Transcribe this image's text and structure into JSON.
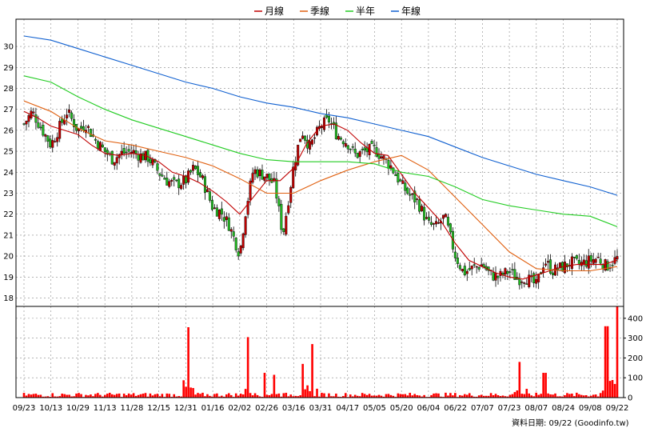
{
  "legend": [
    {
      "label": "月線",
      "color": "#c00000"
    },
    {
      "label": "季線",
      "color": "#e06010"
    },
    {
      "label": "半年",
      "color": "#22cc22"
    },
    {
      "label": "年線",
      "color": "#1060d0"
    }
  ],
  "footer": "資料日期: 09/22 (Goodinfo.tw)",
  "chart_data": {
    "type": "candlestick",
    "price_axis": {
      "ylim": [
        17.6,
        31.3
      ],
      "ticks": [
        18,
        19,
        20,
        21,
        22,
        23,
        24,
        25,
        26,
        27,
        28,
        29,
        30
      ]
    },
    "volume_axis": {
      "ylim": [
        0,
        460
      ],
      "ticks": [
        0,
        100,
        200,
        300,
        400
      ]
    },
    "x_labels": [
      "09/23",
      "10/13",
      "10/29",
      "11/13",
      "11/28",
      "12/15",
      "12/31",
      "01/16",
      "02/02",
      "02/26",
      "03/16",
      "03/31",
      "04/17",
      "05/05",
      "05/20",
      "06/04",
      "06/22",
      "07/07",
      "07/23",
      "08/07",
      "08/24",
      "09/08",
      "09/22"
    ],
    "grid": true,
    "candle_colors": {
      "up": "#c00000",
      "down": "#22bb22"
    },
    "volume_color": "#ff0000",
    "moving_averages": {
      "月線": [
        [
          0,
          26.9
        ],
        [
          0.5,
          26.6
        ],
        [
          1,
          26.2
        ],
        [
          1.5,
          26.0
        ],
        [
          2,
          25.8
        ],
        [
          2.5,
          25.3
        ],
        [
          3,
          24.9
        ],
        [
          3.5,
          24.8
        ],
        [
          4,
          24.9
        ],
        [
          4.5,
          24.8
        ],
        [
          5,
          24.5
        ],
        [
          5.5,
          24.0
        ],
        [
          6,
          23.8
        ],
        [
          6.5,
          23.5
        ],
        [
          7,
          23.1
        ],
        [
          7.5,
          22.6
        ],
        [
          8,
          22.0
        ],
        [
          8.5,
          22.8
        ],
        [
          9,
          23.6
        ],
        [
          9.5,
          23.6
        ],
        [
          10,
          24.2
        ],
        [
          10.5,
          25.4
        ],
        [
          11,
          26.2
        ],
        [
          11.5,
          26.3
        ],
        [
          12,
          26.0
        ],
        [
          12.5,
          25.4
        ],
        [
          13,
          24.9
        ],
        [
          13.5,
          24.8
        ],
        [
          14,
          23.9
        ],
        [
          14.5,
          23.0
        ],
        [
          15,
          22.3
        ],
        [
          15.5,
          21.6
        ],
        [
          16,
          20.6
        ],
        [
          16.5,
          19.8
        ],
        [
          17,
          19.5
        ],
        [
          17.5,
          19.2
        ],
        [
          18,
          19.0
        ],
        [
          18.5,
          18.9
        ],
        [
          19,
          19.1
        ],
        [
          19.5,
          19.3
        ],
        [
          20,
          19.5
        ],
        [
          20.5,
          19.6
        ],
        [
          21,
          19.6
        ],
        [
          21.5,
          19.6
        ],
        [
          22,
          19.8
        ]
      ],
      "季線": [
        [
          0,
          27.4
        ],
        [
          1,
          26.9
        ],
        [
          2,
          26.1
        ],
        [
          3,
          25.5
        ],
        [
          4,
          25.3
        ],
        [
          5,
          25.0
        ],
        [
          6,
          24.7
        ],
        [
          7,
          24.3
        ],
        [
          8,
          23.7
        ],
        [
          9,
          23.0
        ],
        [
          10,
          23.0
        ],
        [
          11,
          23.6
        ],
        [
          12,
          24.1
        ],
        [
          13,
          24.5
        ],
        [
          14,
          24.8
        ],
        [
          15,
          24.1
        ],
        [
          16,
          22.8
        ],
        [
          17,
          21.5
        ],
        [
          18,
          20.2
        ],
        [
          19,
          19.4
        ],
        [
          20,
          19.3
        ],
        [
          21,
          19.3
        ],
        [
          22,
          19.5
        ]
      ],
      "半年": [
        [
          0,
          28.6
        ],
        [
          1,
          28.3
        ],
        [
          2,
          27.6
        ],
        [
          3,
          27.0
        ],
        [
          4,
          26.5
        ],
        [
          5,
          26.1
        ],
        [
          6,
          25.7
        ],
        [
          7,
          25.3
        ],
        [
          8,
          24.9
        ],
        [
          9,
          24.6
        ],
        [
          10,
          24.5
        ],
        [
          11,
          24.5
        ],
        [
          12,
          24.5
        ],
        [
          13,
          24.4
        ],
        [
          14,
          24.0
        ],
        [
          15,
          23.8
        ],
        [
          16,
          23.3
        ],
        [
          17,
          22.7
        ],
        [
          18,
          22.4
        ],
        [
          19,
          22.2
        ],
        [
          20,
          22.0
        ],
        [
          21,
          21.9
        ],
        [
          22,
          21.4
        ]
      ],
      "年線": [
        [
          0,
          30.5
        ],
        [
          1,
          30.3
        ],
        [
          2,
          29.9
        ],
        [
          3,
          29.5
        ],
        [
          4,
          29.1
        ],
        [
          5,
          28.7
        ],
        [
          6,
          28.3
        ],
        [
          7,
          28.0
        ],
        [
          8,
          27.6
        ],
        [
          9,
          27.3
        ],
        [
          10,
          27.1
        ],
        [
          11,
          26.8
        ],
        [
          12,
          26.6
        ],
        [
          13,
          26.3
        ],
        [
          14,
          26.0
        ],
        [
          15,
          25.7
        ],
        [
          16,
          25.2
        ],
        [
          17,
          24.7
        ],
        [
          18,
          24.3
        ],
        [
          19,
          23.9
        ],
        [
          20,
          23.6
        ],
        [
          21,
          23.3
        ],
        [
          22,
          22.9
        ]
      ]
    },
    "price_path": [
      [
        0,
        26.3
      ],
      [
        0.3,
        26.9
      ],
      [
        0.6,
        26.2
      ],
      [
        1,
        25.3
      ],
      [
        1.3,
        26.1
      ],
      [
        1.6,
        26.9
      ],
      [
        2,
        26.0
      ],
      [
        2.3,
        26.3
      ],
      [
        2.6,
        25.6
      ],
      [
        3,
        25.0
      ],
      [
        3.3,
        24.6
      ],
      [
        3.6,
        24.9
      ],
      [
        4,
        25.0
      ],
      [
        4.3,
        24.8
      ],
      [
        4.6,
        24.7
      ],
      [
        5,
        24.0
      ],
      [
        5.3,
        23.6
      ],
      [
        5.6,
        23.4
      ],
      [
        6,
        23.6
      ],
      [
        6.3,
        24.2
      ],
      [
        6.6,
        23.7
      ],
      [
        7,
        22.3
      ],
      [
        7.3,
        22.1
      ],
      [
        7.6,
        21.5
      ],
      [
        8,
        20.1
      ],
      [
        8.2,
        22.0
      ],
      [
        8.5,
        24.1
      ],
      [
        9,
        23.8
      ],
      [
        9.3,
        23.4
      ],
      [
        9.6,
        21.0
      ],
      [
        10,
        24.3
      ],
      [
        10.3,
        26.0
      ],
      [
        10.6,
        25.2
      ],
      [
        11,
        26.2
      ],
      [
        11.3,
        26.5
      ],
      [
        11.6,
        25.8
      ],
      [
        12,
        25.4
      ],
      [
        12.3,
        24.8
      ],
      [
        12.6,
        25.0
      ],
      [
        13,
        25.1
      ],
      [
        13.3,
        24.7
      ],
      [
        13.6,
        24.3
      ],
      [
        14,
        23.4
      ],
      [
        14.3,
        22.9
      ],
      [
        14.6,
        22.6
      ],
      [
        15,
        21.5
      ],
      [
        15.3,
        21.4
      ],
      [
        15.6,
        21.9
      ],
      [
        16,
        20.0
      ],
      [
        16.3,
        19.2
      ],
      [
        16.6,
        19.4
      ],
      [
        17,
        19.6
      ],
      [
        17.3,
        19.1
      ],
      [
        17.6,
        19.0
      ],
      [
        18,
        19.3
      ],
      [
        18.3,
        18.9
      ],
      [
        18.6,
        19.0
      ],
      [
        19,
        18.6
      ],
      [
        19.3,
        19.8
      ],
      [
        19.6,
        19.3
      ],
      [
        20,
        19.5
      ],
      [
        20.3,
        19.7
      ],
      [
        20.6,
        19.6
      ],
      [
        21,
        19.8
      ],
      [
        21.3,
        19.9
      ],
      [
        21.6,
        19.5
      ],
      [
        22,
        19.9
      ]
    ],
    "volume_spikes": [
      [
        6.1,
        355
      ],
      [
        8.3,
        305
      ],
      [
        8.9,
        125
      ],
      [
        9.3,
        115
      ],
      [
        10.7,
        270
      ],
      [
        10.3,
        170
      ],
      [
        18.4,
        180
      ],
      [
        19.3,
        125
      ],
      [
        21.6,
        360
      ],
      [
        22.0,
        460
      ]
    ]
  }
}
